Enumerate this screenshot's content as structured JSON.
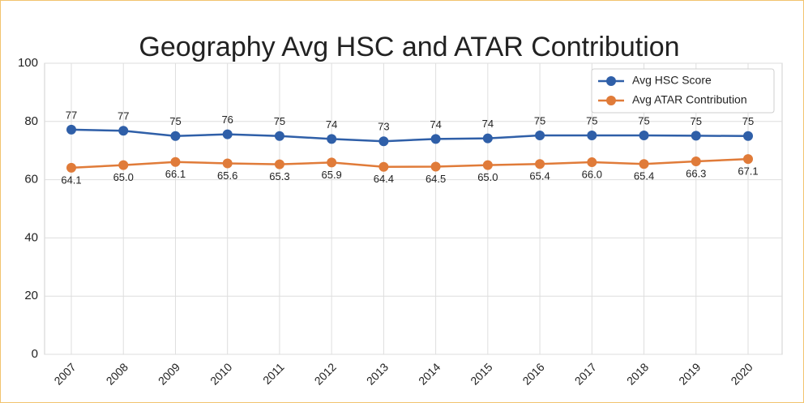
{
  "chart_data": {
    "type": "line",
    "title": "Geography Avg HSC and ATAR Contribution",
    "categories": [
      "2007",
      "2008",
      "2009",
      "2010",
      "2011",
      "2012",
      "2013",
      "2014",
      "2015",
      "2016",
      "2017",
      "2018",
      "2019",
      "2020"
    ],
    "series": [
      {
        "name": "Avg HSC Score",
        "color": "#2f5fa8",
        "values": [
          77.2,
          76.8,
          75.0,
          75.6,
          75.0,
          74.0,
          73.2,
          74.0,
          74.2,
          75.2,
          75.2,
          75.2,
          75.1,
          75.0
        ],
        "value_labels": [
          "77",
          "77",
          "75",
          "76",
          "75",
          "74",
          "73",
          "74",
          "74",
          "75",
          "75",
          "75",
          "75",
          "75"
        ]
      },
      {
        "name": "Avg ATAR Contribution",
        "color": "#e07b39",
        "values": [
          64.1,
          65.0,
          66.1,
          65.6,
          65.3,
          65.9,
          64.4,
          64.5,
          65.0,
          65.4,
          66.0,
          65.4,
          66.3,
          67.1
        ],
        "value_labels": [
          "64.1",
          "65.0",
          "66.1",
          "65.6",
          "65.3",
          "65.9",
          "64.4",
          "64.5",
          "65.0",
          "65.4",
          "66.0",
          "65.4",
          "66.3",
          "67.1"
        ]
      }
    ],
    "ylim": [
      0,
      100
    ],
    "yticks": [
      0,
      20,
      40,
      60,
      80,
      100
    ],
    "grid": true,
    "legend": "upper right"
  }
}
